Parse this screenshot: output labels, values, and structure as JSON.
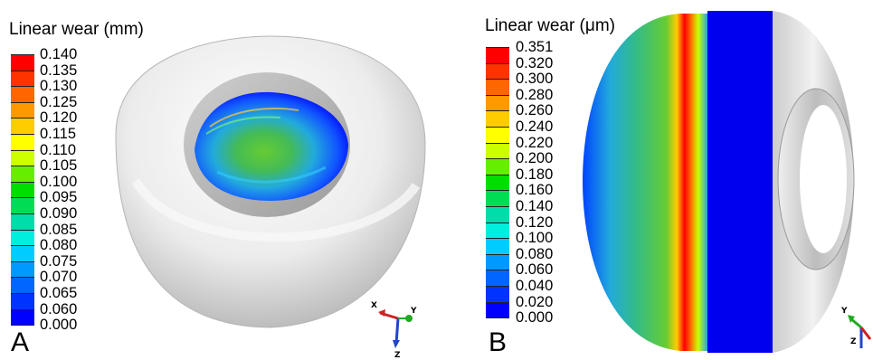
{
  "panels": [
    {
      "letter": "A",
      "legend_title": "Linear wear (mm)",
      "ticks": [
        "0.140",
        "0.135",
        "0.130",
        "0.125",
        "0.120",
        "0.115",
        "0.110",
        "0.105",
        "0.100",
        "0.095",
        "0.090",
        "0.085",
        "0.080",
        "0.075",
        "0.070",
        "0.065",
        "0.060",
        "0.000"
      ],
      "colors": [
        "#ff0000",
        "#ff3300",
        "#ff6600",
        "#ff9900",
        "#ffcc00",
        "#ffff00",
        "#ccff00",
        "#66ee00",
        "#00dd00",
        "#00dd55",
        "#00ddaa",
        "#00eedd",
        "#00ccff",
        "#0099ff",
        "#0066ff",
        "#0033ff",
        "#0000ff"
      ],
      "triad": {
        "x": "X",
        "y": "Y",
        "z": "Z"
      }
    },
    {
      "letter": "B",
      "legend_title": "Linear wear (μm)",
      "ticks": [
        "0.351",
        "0.320",
        "0.300",
        "0.280",
        "0.260",
        "0.240",
        "0.220",
        "0.200",
        "0.180",
        "0.160",
        "0.140",
        "0.120",
        "0.100",
        "0.080",
        "0.060",
        "0.040",
        "0.020",
        "0.000"
      ],
      "colors": [
        "#ff0000",
        "#ff3300",
        "#ff6600",
        "#ff9900",
        "#ffcc00",
        "#ffff00",
        "#ccff00",
        "#66ee00",
        "#00dd00",
        "#00dd55",
        "#00ddaa",
        "#00eedd",
        "#00ccff",
        "#0099ff",
        "#0066ff",
        "#0033ff",
        "#0000ff"
      ],
      "triad": {
        "y": "Y",
        "z": "Z"
      }
    }
  ]
}
